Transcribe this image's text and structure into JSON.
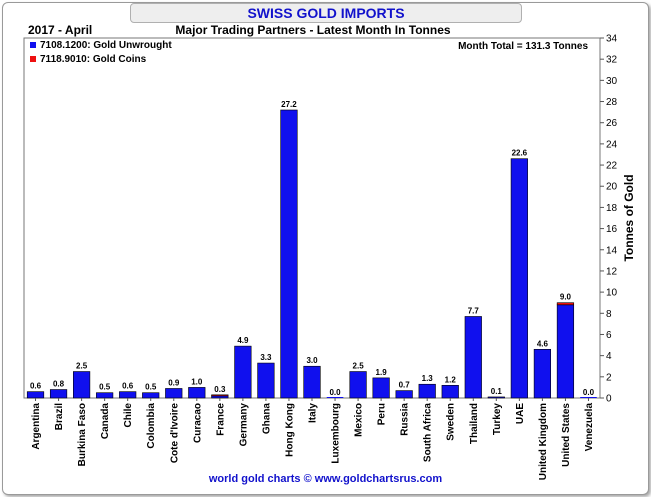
{
  "title": "SWISS GOLD IMPORTS",
  "footer": "world gold charts © www.goldchartsrus.com",
  "chart_data": {
    "type": "bar",
    "date_label": "2017 - April",
    "subtitle": "Major Trading Partners - Latest Month In Tonnes",
    "month_total": "Month Total = 131.3 Tonnes",
    "ylabel": "Tonnes of Gold",
    "ylim": [
      0,
      34
    ],
    "ytick_step": 2,
    "legend_position": "top-left",
    "grid": false,
    "categories": [
      "Argentina",
      "Brazil",
      "Burkina Faso",
      "Canada",
      "Chile",
      "Colombia",
      "Cote d'Ivoire",
      "Curacao",
      "France",
      "Germany",
      "Ghana",
      "Hong Kong",
      "Italy",
      "Luxembourg",
      "Mexico",
      "Peru",
      "Russia",
      "South Africa",
      "Sweden",
      "Thailand",
      "Turkey",
      "UAE",
      "United Kingdom",
      "United States",
      "Venezuela"
    ],
    "series": [
      {
        "name": "7108.1200: Gold Unwrought",
        "color": "#1010ee",
        "values": [
          0.6,
          0.8,
          2.5,
          0.5,
          0.6,
          0.5,
          0.9,
          1.0,
          0.2,
          4.9,
          3.3,
          27.2,
          3.0,
          0.0,
          2.5,
          1.9,
          0.7,
          1.3,
          1.2,
          7.7,
          0.1,
          22.6,
          4.6,
          8.8,
          0.0
        ]
      },
      {
        "name": "7118.9010: Gold Coins",
        "color": "#ee1010",
        "values": [
          0,
          0,
          0,
          0,
          0,
          0,
          0,
          0,
          0.1,
          0,
          0,
          0,
          0,
          0,
          0,
          0,
          0,
          0,
          0,
          0,
          0,
          0,
          0,
          0.2,
          0
        ]
      }
    ],
    "data_labels": [
      "0.6",
      "0.8",
      "2.5",
      "0.5",
      "0.6",
      "0.5",
      "0.9",
      "1.0",
      "0.3",
      "4.9",
      "3.3",
      "27.2",
      "3.0",
      "0.0",
      "2.5",
      "1.9",
      "0.7",
      "1.3",
      "1.2",
      "7.7",
      "0.1",
      "22.6",
      "4.6",
      "9.0",
      "0.0"
    ]
  }
}
